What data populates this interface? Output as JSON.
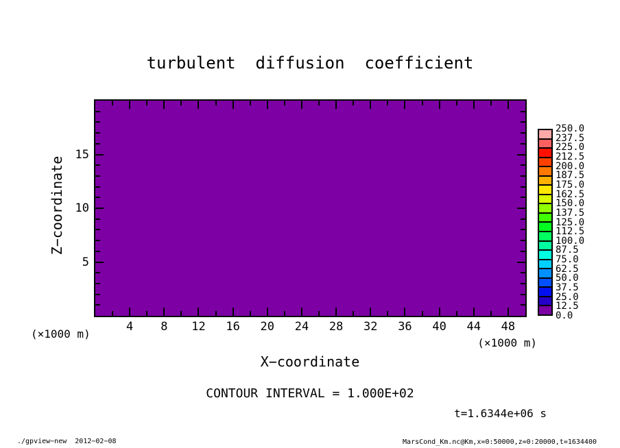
{
  "title": "turbulent  diffusion  coefficient",
  "axes": {
    "x": {
      "label": "X−coordinate",
      "units_note": "(×1000 m)",
      "min": 0,
      "max": 50,
      "major_ticks": [
        4,
        8,
        12,
        16,
        20,
        24,
        28,
        32,
        36,
        40,
        44,
        48
      ],
      "minor_step": 2
    },
    "z": {
      "label": "Z−coordinate",
      "units_note": "(×1000 m)",
      "min": 0,
      "max": 20,
      "major_ticks": [
        5,
        10,
        15
      ],
      "minor_step": 1
    }
  },
  "plot": {
    "fill_color": "#7D00A5",
    "border_color": "#000000"
  },
  "colorbar": {
    "min": 0.0,
    "max": 250.0,
    "step": 12.5,
    "tick_labels_top_to_bottom": [
      "250.0",
      "237.5",
      "225.0",
      "212.5",
      "200.0",
      "187.5",
      "175.0",
      "162.5",
      "150.0",
      "137.5",
      "125.0",
      "112.5",
      "100.0",
      "87.5",
      "75.0",
      "62.5",
      "50.0",
      "37.5",
      "25.0",
      "12.5",
      "0.0"
    ],
    "cell_colors_bottom_to_top": [
      "#7D00A5",
      "#2600C8",
      "#0010F0",
      "#0050FF",
      "#0090FF",
      "#00D0FF",
      "#00FFE0",
      "#00FFA0",
      "#00FF60",
      "#00FF20",
      "#40FF00",
      "#90FF00",
      "#D8FF00",
      "#FFE800",
      "#FFB000",
      "#FF7800",
      "#FF4000",
      "#FF1000",
      "#FF6060",
      "#FFA8A8"
    ]
  },
  "annotations": {
    "contour_interval": "CONTOUR INTERVAL = 1.000E+02",
    "time_label": "t=1.6344e+06 s",
    "x_units_left": "(×1000 m)",
    "x_units_right": "(×1000 m)"
  },
  "footer": {
    "left": "./gpview−new  2012−02−08",
    "right": "MarsCond_Km.nc@Km,x=0:50000,z=0:20000,t=1634400"
  },
  "chart_data": {
    "type": "heatmap",
    "title": "turbulent diffusion coefficient",
    "xlabel": "X−coordinate",
    "ylabel": "Z−coordinate",
    "x_units": "×1000 m",
    "y_units": "×1000 m",
    "xlim": [
      0,
      50
    ],
    "ylim": [
      0,
      20
    ],
    "x_major_ticks": [
      4,
      8,
      12,
      16,
      20,
      24,
      28,
      32,
      36,
      40,
      44,
      48
    ],
    "x_minor_step": 2,
    "y_major_ticks": [
      5,
      10,
      15
    ],
    "y_minor_step": 1,
    "field": "uniform constant field — entire domain falls in lowest color bin 0.0–12.5, rendered as solid purple",
    "contour_interval": 100.0,
    "time_label": "t=1.6344e+06 s",
    "colorbar_range": [
      0.0,
      250.0
    ],
    "colorbar_step": 12.5,
    "colorbar_position": "right",
    "grid": false
  }
}
